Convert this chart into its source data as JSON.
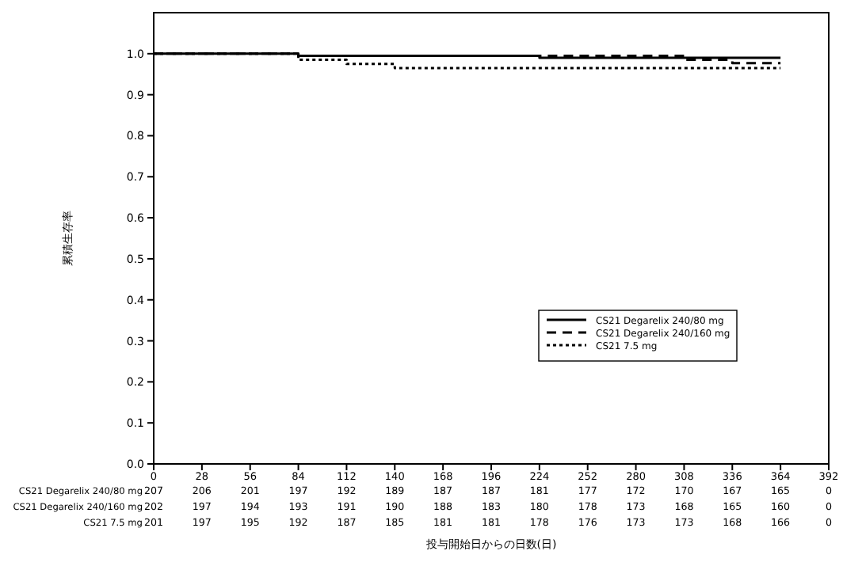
{
  "chart_data": {
    "type": "step",
    "xlabel": "投与開始日からの日数(日)",
    "ylabel": "累積生存率",
    "xlim": [
      0,
      392
    ],
    "xticks": [
      0,
      28,
      56,
      84,
      112,
      140,
      168,
      196,
      224,
      252,
      280,
      308,
      336,
      364,
      392
    ],
    "ylim": [
      0,
      1.1
    ],
    "yticks": [
      {
        "value": 0,
        "label": "0.0"
      },
      {
        "value": 0.1,
        "label": "0.1"
      },
      {
        "value": 0.2,
        "label": "0.2"
      },
      {
        "value": 0.3,
        "label": "0.3"
      },
      {
        "value": 0.4,
        "label": "0.4"
      },
      {
        "value": 0.5,
        "label": "0.5"
      },
      {
        "value": 0.6,
        "label": "0.6"
      },
      {
        "value": 0.7,
        "label": "0.7"
      },
      {
        "value": 0.8,
        "label": "0.8"
      },
      {
        "value": 0.9,
        "label": "0.9"
      },
      {
        "value": 1,
        "label": "1.0"
      }
    ],
    "legend": "right",
    "grid": false,
    "series": [
      {
        "name": "CS21 Degarelix 240/80 mg",
        "color": "#000000",
        "line_style": "solid",
        "x": [
          0,
          84,
          224,
          364
        ],
        "values": [
          1.0,
          0.995,
          0.99,
          0.99
        ]
      },
      {
        "name": "CS21 Degarelix 240/160 mg",
        "color": "#000000",
        "line_style": "dashed",
        "x": [
          0,
          84,
          308,
          336,
          364
        ],
        "values": [
          1.0,
          0.995,
          0.985,
          0.977,
          0.977
        ]
      },
      {
        "name": "CS21 7.5 mg",
        "color": "#000000",
        "line_style": "dotted",
        "x": [
          0,
          84,
          112,
          140,
          364
        ],
        "values": [
          1.0,
          0.985,
          0.975,
          0.965,
          0.965
        ]
      }
    ],
    "annotations": [
      "CS21 Degarelix 240/80 mg",
      "CS21 Degarelix 240/160 mg",
      "CS21 7.5 mg",
      "207",
      "206",
      "201",
      "197",
      "192",
      "189",
      "187",
      "187",
      "181",
      "177",
      "172",
      "170",
      "167",
      "165",
      "0",
      "202",
      "197",
      "194",
      "193",
      "191",
      "190",
      "188",
      "183",
      "180",
      "178",
      "173",
      "168",
      "165",
      "160",
      "0",
      "201",
      "197",
      "195",
      "192",
      "187",
      "185",
      "181",
      "181",
      "178",
      "176",
      "173",
      "173",
      "168",
      "166",
      "0"
    ]
  }
}
